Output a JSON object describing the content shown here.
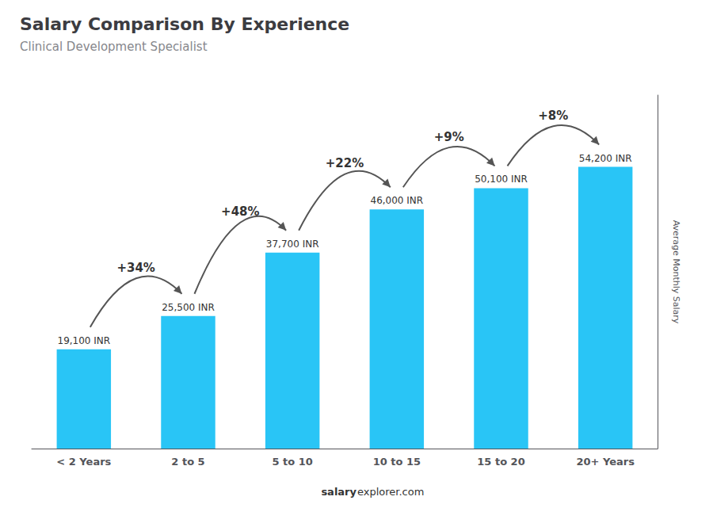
{
  "chart_data": {
    "type": "bar",
    "title": "Salary Comparison By Experience",
    "subtitle": "Clinical Development Specialist",
    "y_label": "Average Monthly Salary",
    "categories": [
      "< 2 Years",
      "2 to 5",
      "5 to 10",
      "10 to 15",
      "15 to 20",
      "20+ Years"
    ],
    "values": [
      19100,
      25500,
      37700,
      46000,
      50100,
      54200
    ],
    "value_labels": [
      "19,100 INR",
      "25,500 INR",
      "37,700 INR",
      "46,000 INR",
      "50,100 INR",
      "54,200 INR"
    ],
    "data_labels": true,
    "annotations": [
      "+34%",
      "+48%",
      "+22%",
      "+9%",
      "+8%"
    ],
    "footer": [
      "salary",
      "explorer.com"
    ],
    "color": "#29C5F6",
    "ylim": [
      0,
      68000
    ],
    "tick_labels": "x",
    "grid": false
  }
}
